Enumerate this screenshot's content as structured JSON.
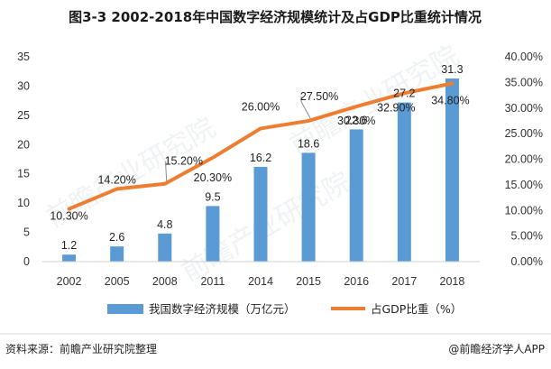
{
  "chart_data": {
    "type": "bar+line",
    "title": "图3-3 2002-2018年中国数字经济规模统计及占GDP比重统计情况",
    "categories": [
      "2002",
      "2005",
      "2008",
      "2011",
      "2014",
      "2015",
      "2016",
      "2017",
      "2018"
    ],
    "bar_series": {
      "name": "我国数字经济规模（万亿元）",
      "values": [
        1.2,
        2.6,
        4.8,
        9.5,
        16.2,
        18.6,
        22.6,
        27.2,
        31.3
      ],
      "labels": [
        "1.2",
        "2.6",
        "4.8",
        "9.5",
        "16.2",
        "18.6",
        "22.6",
        "27.2",
        "31.3"
      ],
      "color": "#5b9bd5"
    },
    "line_series": {
      "name": "占GDP比重（%）",
      "values": [
        10.3,
        14.2,
        15.2,
        20.3,
        26.0,
        27.5,
        30.3,
        32.9,
        34.8
      ],
      "labels": [
        "10.30%",
        "14.20%",
        "15.20%",
        "20.30%",
        "26.00%",
        "27.50%",
        "30.30%",
        "32.90%",
        "34.80%"
      ],
      "color": "#ed7d31"
    },
    "y_left": {
      "min": 0,
      "max": 35,
      "ticks": [
        "0",
        "5",
        "10",
        "15",
        "20",
        "25",
        "30",
        "35"
      ]
    },
    "y_right": {
      "min": 0,
      "max": 40,
      "ticks": [
        "0.00%",
        "5.00%",
        "10.00%",
        "15.00%",
        "20.00%",
        "25.00%",
        "30.00%",
        "35.00%",
        "40.00%"
      ]
    },
    "legend_position": "bottom"
  },
  "footer": {
    "source": "资料来源：前瞻产业研究院整理",
    "credit": "@前瞻经济学人APP"
  },
  "watermark": "前瞻产业研究院"
}
